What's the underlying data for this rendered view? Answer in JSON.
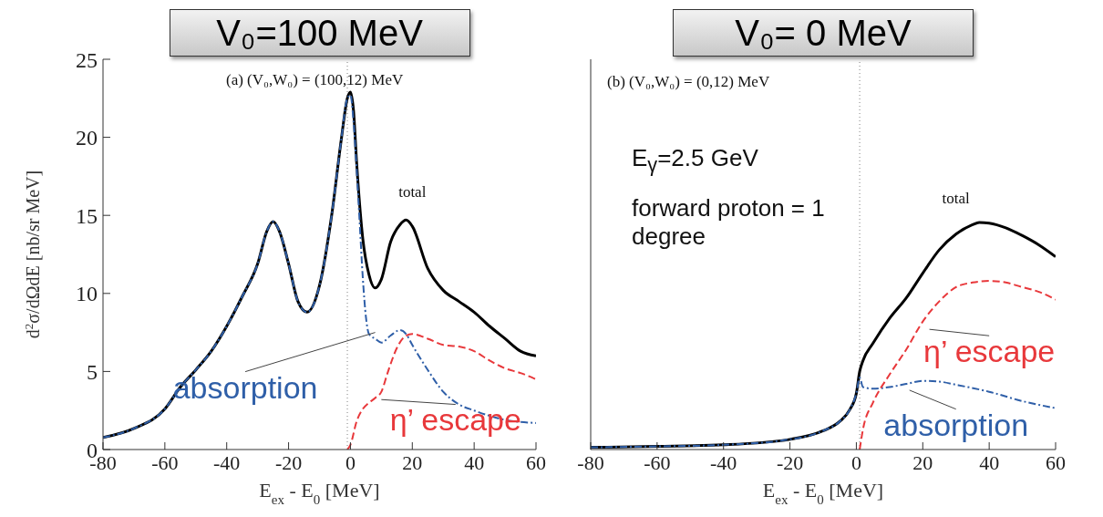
{
  "chart_data": [
    {
      "type": "line",
      "title": "V₀=100 MeV",
      "xlabel": "E$_{ex}$ - E$_{0}$ [MeV]",
      "ylabel": "d$^{2}$σ/dΩdE [nb/sr MeV]",
      "annotations": [
        "(a) (V₀,W₀) = (100,12) MeV"
      ],
      "xlim": [
        -80,
        60
      ],
      "xticks": [
        -80,
        -60,
        -40,
        -20,
        0,
        20,
        40,
        60
      ],
      "ylim": [
        0,
        25
      ],
      "yticks": [
        0,
        5,
        10,
        15,
        20,
        25
      ],
      "ref_lines": [
        {
          "axis": "x",
          "value": -1,
          "color": "#808080",
          "line_style": "dotted"
        }
      ],
      "series": [
        {
          "name": "total",
          "color": "#000000",
          "line_style": "solid",
          "x": [
            -80,
            -70,
            -60,
            -55,
            -50,
            -45,
            -40,
            -35,
            -30,
            -27,
            -25,
            -23,
            -20,
            -17,
            -14,
            -10,
            -6,
            -3,
            -1,
            0,
            1,
            2,
            4,
            6,
            8,
            10,
            13,
            16,
            18,
            20,
            25,
            30,
            35,
            40,
            45,
            50,
            55,
            60
          ],
          "values": [
            0.77,
            1.35,
            2.6,
            4.0,
            5.1,
            6.3,
            7.9,
            9.8,
            11.9,
            14.0,
            14.6,
            14.0,
            11.9,
            9.5,
            8.8,
            10.5,
            15.1,
            19.8,
            22.5,
            22.9,
            21.7,
            18.4,
            13.5,
            11.2,
            10.35,
            10.9,
            13.3,
            14.4,
            14.7,
            14.3,
            11.6,
            10.2,
            9.5,
            8.8,
            7.9,
            7.1,
            6.3,
            6.0
          ]
        },
        {
          "name": "absorption",
          "color": "#2f5fa8",
          "line_style": "dashdot",
          "x": [
            -80,
            -70,
            -60,
            -55,
            -50,
            -45,
            -40,
            -35,
            -30,
            -27,
            -25,
            -23,
            -20,
            -17,
            -14,
            -10,
            -6,
            -3,
            -1,
            0,
            1,
            2,
            3,
            4,
            5,
            6,
            8,
            10,
            13,
            16,
            18,
            20,
            25,
            30,
            35,
            40,
            50,
            60
          ],
          "values": [
            0.77,
            1.35,
            2.6,
            4.0,
            5.1,
            6.3,
            7.9,
            9.8,
            11.9,
            14.0,
            14.6,
            14.0,
            11.9,
            9.5,
            8.8,
            10.5,
            15.1,
            19.8,
            22.5,
            22.7,
            21.0,
            18.0,
            14.5,
            11.0,
            8.5,
            7.4,
            7.1,
            6.85,
            7.3,
            7.65,
            7.4,
            6.7,
            5.1,
            3.7,
            2.9,
            2.5,
            1.9,
            1.7
          ]
        },
        {
          "name": "η’ escape",
          "color": "#e8383b",
          "line_style": "dashed",
          "x": [
            -1,
            0,
            2,
            4,
            6,
            8,
            10,
            12,
            15,
            18,
            20,
            25,
            30,
            35,
            40,
            45,
            50,
            55,
            60
          ],
          "values": [
            0,
            0.3,
            1.8,
            2.6,
            3.0,
            3.3,
            3.7,
            4.9,
            6.5,
            7.3,
            7.4,
            7.1,
            6.7,
            6.6,
            6.3,
            5.7,
            5.2,
            4.9,
            4.5
          ]
        }
      ]
    },
    {
      "type": "line",
      "title": "V₀= 0 MeV",
      "xlabel": "E$_{ex}$ - E$_{0}$ [MeV]",
      "annotations": [
        "(b) (V₀,W₀) = (0,12) MeV",
        "E$_{γ}$=2.5 GeV",
        "forward proton = 1 degree"
      ],
      "xlim": [
        -80,
        60
      ],
      "xticks": [
        -80,
        -60,
        -40,
        -20,
        0,
        20,
        40,
        60
      ],
      "ylim": [
        0,
        25
      ],
      "yticks": [
        0,
        5,
        10,
        15,
        20,
        25
      ],
      "tick_labels": "x",
      "ref_lines": [
        {
          "axis": "x",
          "value": 1,
          "color": "#808080",
          "line_style": "dotted"
        }
      ],
      "series": [
        {
          "name": "total",
          "color": "#000000",
          "line_style": "solid",
          "x": [
            -80,
            -60,
            -40,
            -20,
            -10,
            -5,
            -2,
            0,
            1,
            2,
            5,
            10,
            15,
            20,
            25,
            30,
            35,
            37,
            40,
            45,
            50,
            55,
            60
          ],
          "values": [
            0.14,
            0.2,
            0.3,
            0.65,
            1.2,
            1.8,
            2.55,
            3.6,
            5.0,
            5.7,
            6.8,
            8.4,
            9.7,
            11.3,
            12.8,
            13.8,
            14.4,
            14.55,
            14.5,
            14.2,
            13.7,
            13.1,
            12.35
          ]
        },
        {
          "name": "absorption",
          "color": "#2f5fa8",
          "line_style": "dashdot",
          "x": [
            -80,
            -60,
            -40,
            -20,
            -10,
            -5,
            -2,
            0,
            1,
            2,
            5,
            10,
            15,
            20,
            25,
            30,
            40,
            50,
            60
          ],
          "values": [
            0.14,
            0.2,
            0.3,
            0.65,
            1.2,
            1.8,
            2.55,
            3.6,
            4.6,
            4.0,
            3.9,
            4.0,
            4.2,
            4.4,
            4.35,
            4.15,
            3.7,
            3.1,
            2.65
          ]
        },
        {
          "name": "η’ escape",
          "color": "#e8383b",
          "line_style": "dashed",
          "x": [
            1,
            2,
            5,
            10,
            15,
            20,
            25,
            30,
            35,
            40,
            45,
            50,
            55,
            60
          ],
          "values": [
            0,
            1.3,
            3.0,
            4.8,
            6.4,
            8.2,
            9.5,
            10.4,
            10.7,
            10.8,
            10.7,
            10.4,
            10.1,
            9.6
          ]
        }
      ]
    }
  ]
}
